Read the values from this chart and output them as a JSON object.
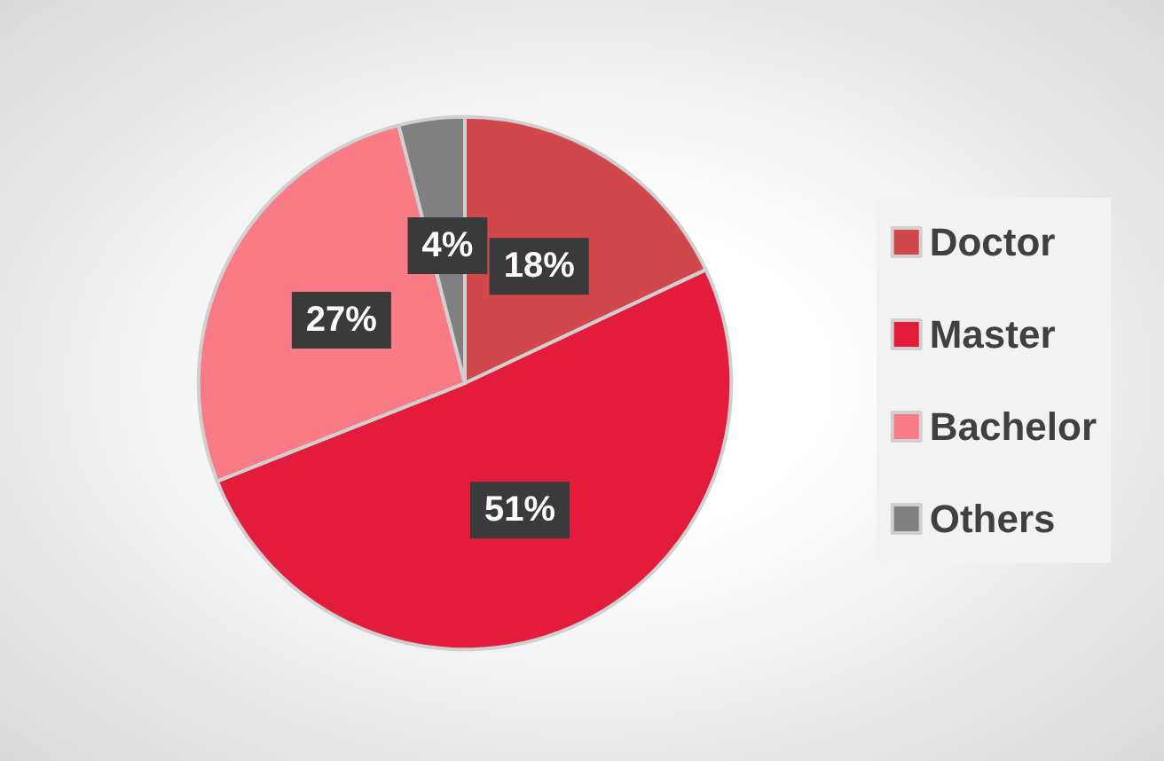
{
  "chart_data": {
    "type": "pie",
    "categories": [
      "Doctor",
      "Master",
      "Bachelor",
      "Others"
    ],
    "values": [
      18,
      51,
      27,
      4
    ],
    "colors": [
      "#d0484c",
      "#e41c3c",
      "#f97b86",
      "#808080"
    ],
    "value_labels": [
      "18%",
      "51%",
      "27%",
      "4%"
    ],
    "legend": "right"
  }
}
